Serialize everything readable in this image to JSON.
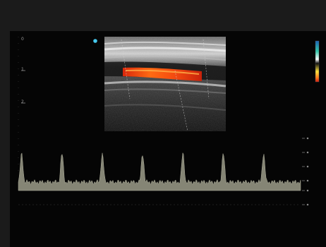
{
  "image": {
    "kind": "ultrasound-color-doppler-with-spectral-waveform",
    "palette": {
      "background": "#050505",
      "frame": "#1b1b1b",
      "tissue_light": "#cfcfcf",
      "tissue_dark": "#2a2a2a",
      "flow_red": "#e23c12",
      "flow_orange": "#ff7a1c",
      "waveform": "#8c8c7c",
      "marker": "#46c9ee"
    }
  },
  "depth_ruler": {
    "labels": [
      "0",
      "1",
      "2"
    ]
  },
  "color_map": {
    "top_colors": [
      "#1b63b6",
      "#31c6a8",
      "#ffffff"
    ],
    "bottom_colors": [
      "#ffe23c",
      "#ff7a1c",
      "#d11a0e"
    ]
  },
  "spectral": {
    "peak_count": 7
  }
}
